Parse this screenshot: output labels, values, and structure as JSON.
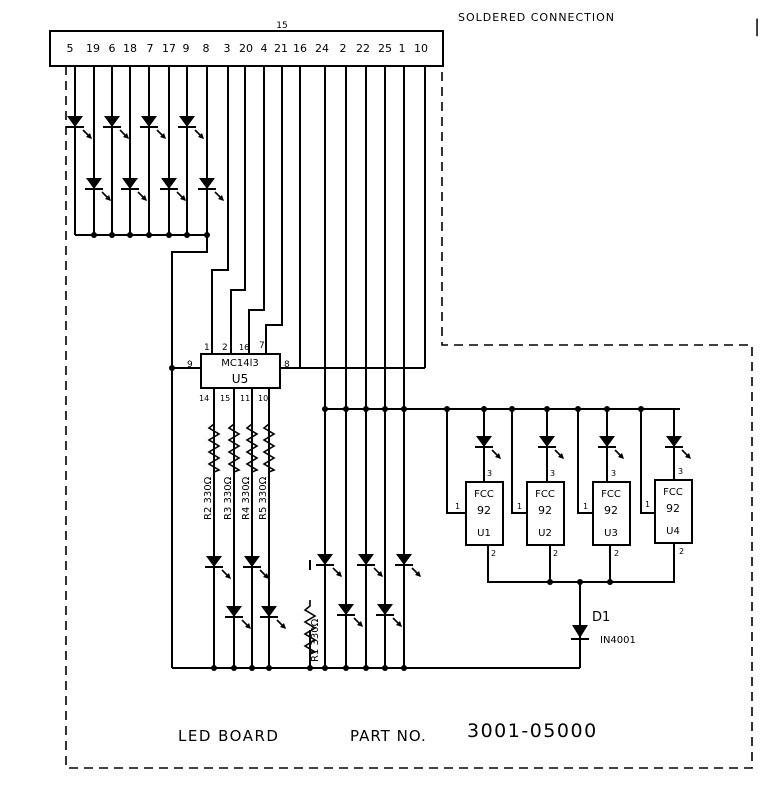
{
  "header": {
    "note": "SOLDERED CONNECTION",
    "marker": "|"
  },
  "connector": {
    "top_label": "15",
    "pins": [
      "5",
      "19",
      "6",
      "18",
      "7",
      "17",
      "9",
      "8",
      "3",
      "20",
      "4",
      "21",
      "16",
      "24",
      "2",
      "22",
      "25",
      "1",
      "10"
    ]
  },
  "ic_u5": {
    "part": "MC14l3",
    "ref": "U5",
    "pins_top": [
      "1",
      "2",
      "16",
      "7"
    ],
    "pin_left": "9",
    "pin_right": "8",
    "pins_bottom": [
      "14",
      "15",
      "11",
      "10"
    ]
  },
  "resistors": [
    {
      "label": "R2 330Ω"
    },
    {
      "label": "R3 330Ω"
    },
    {
      "label": "R4 330Ω"
    },
    {
      "label": "R5 330Ω"
    },
    {
      "label": "R1 330Ω"
    }
  ],
  "fcc_chips": [
    {
      "line1": "FCC",
      "line2": "92",
      "ref": "U1",
      "pin_top": "3",
      "pin_left": "1",
      "pin_bottom": "2"
    },
    {
      "line1": "FCC",
      "line2": "92",
      "ref": "U2",
      "pin_top": "3",
      "pin_left": "1",
      "pin_bottom": "2"
    },
    {
      "line1": "FCC",
      "line2": "92",
      "ref": "U3",
      "pin_top": "3",
      "pin_left": "1",
      "pin_bottom": "2"
    },
    {
      "line1": "FCC",
      "line2": "92",
      "ref": "U4",
      "pin_top": "3",
      "pin_left": "1",
      "pin_bottom": "2"
    }
  ],
  "diode": {
    "ref": "D1",
    "part": "IN4001"
  },
  "footer": {
    "title": "LED BOARD",
    "part_label": "PART NO.",
    "part_number": "3001-05000"
  }
}
